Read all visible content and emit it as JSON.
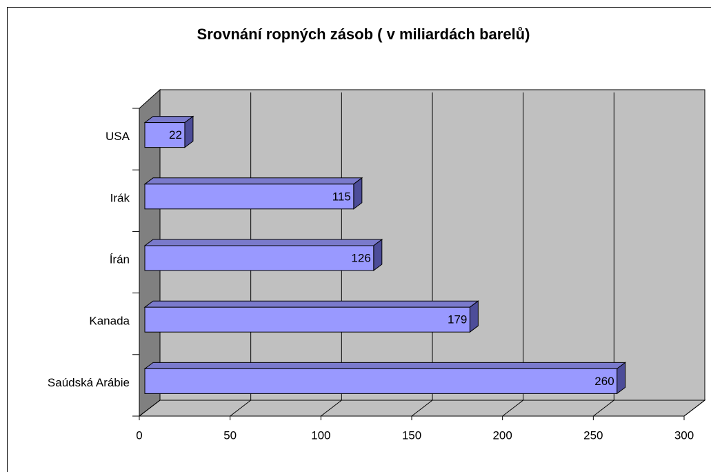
{
  "chart_data": {
    "type": "bar",
    "orientation": "horizontal",
    "title": "Srovnání ropných zásob ( v miliardách barelů)",
    "categories": [
      "Saúdská Arábie",
      "Kanada",
      "Írán",
      "Irák",
      "USA"
    ],
    "values": [
      260,
      179,
      126,
      115,
      22
    ],
    "color": "#9999ff",
    "xlim": [
      0,
      300
    ],
    "xticks": [
      0,
      50,
      100,
      150,
      200,
      250,
      300
    ],
    "grid": true
  }
}
